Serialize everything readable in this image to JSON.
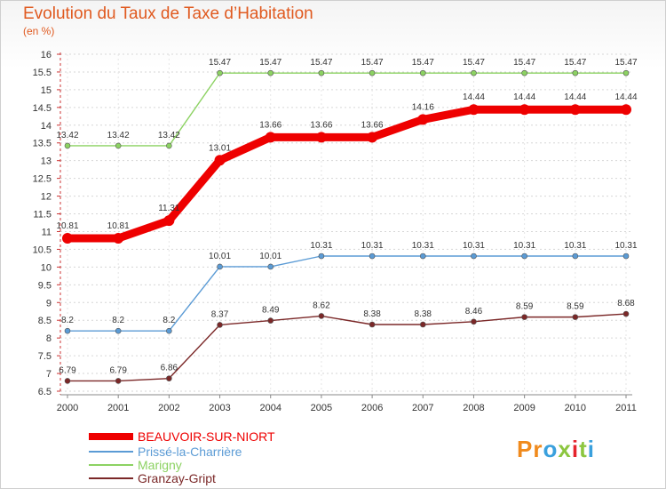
{
  "chart_data": {
    "type": "line",
    "title": "Evolution du Taux de Taxe d’Habitation",
    "unit_label": "(en %)",
    "x": [
      "2000",
      "2001",
      "2002",
      "2003",
      "2004",
      "2005",
      "2006",
      "2007",
      "2008",
      "2009",
      "2010",
      "2011"
    ],
    "ylim": [
      6.5,
      16
    ],
    "yticks": [
      "6.5",
      "7",
      "7.5",
      "8",
      "8.5",
      "9",
      "9.5",
      "10",
      "10.5",
      "11",
      "11.5",
      "12",
      "12.5",
      "13",
      "13.5",
      "14",
      "14.5",
      "15",
      "15.5",
      "16"
    ],
    "grid": "horizontal-dashed",
    "legend_position": "bottom-left",
    "series": [
      {
        "name": "BEAUVOIR-SUR-NIORT",
        "color": "#ee0000",
        "emphasis": true,
        "values": [
          10.81,
          10.81,
          11.31,
          13.01,
          13.66,
          13.66,
          13.66,
          14.16,
          14.44,
          14.44,
          14.44,
          14.44
        ],
        "labels": [
          "10.81",
          "10.81",
          "11.31",
          "13.01",
          "13.66",
          "13.66",
          "13.66",
          "14.16",
          "14.44",
          "14.44",
          "14.44",
          "14.44"
        ]
      },
      {
        "name": "Prissé-la-Charrière",
        "color": "#5b9bd5",
        "values": [
          8.2,
          8.2,
          8.2,
          10.01,
          10.01,
          10.31,
          10.31,
          10.31,
          10.31,
          10.31,
          10.31,
          10.31
        ],
        "labels": [
          "8.2",
          "8.2",
          "8.2",
          "10.01",
          "10.01",
          "10.31",
          "10.31",
          "10.31",
          "10.31",
          "10.31",
          "10.31",
          "10.31"
        ]
      },
      {
        "name": "Marigny",
        "color": "#8cd262",
        "values": [
          13.42,
          13.42,
          13.42,
          15.47,
          15.47,
          15.47,
          15.47,
          15.47,
          15.47,
          15.47,
          15.47,
          15.47
        ],
        "labels": [
          "13.42",
          "13.42",
          "13.42",
          "15.47",
          "15.47",
          "15.47",
          "15.47",
          "15.47",
          "15.47",
          "15.47",
          "15.47",
          "15.47"
        ]
      },
      {
        "name": "Granzay-Gript",
        "color": "#7b2828",
        "values": [
          6.79,
          6.79,
          6.86,
          8.37,
          8.49,
          8.62,
          8.38,
          8.38,
          8.46,
          8.59,
          8.59,
          8.68
        ],
        "labels": [
          "6.79",
          "6.79",
          "6.86",
          "8.37",
          "8.49",
          "8.62",
          "8.38",
          "8.38",
          "8.46",
          "8.59",
          "8.59",
          "8.68"
        ]
      }
    ]
  },
  "logo": {
    "text": "Proxiti",
    "letters": [
      "P",
      "r",
      "o",
      "x",
      "i",
      "t",
      "i"
    ],
    "colors": [
      "#f08a1c",
      "#f08a1c",
      "#3aa0dd",
      "#8cc63f",
      "#e5232c",
      "#8cc63f",
      "#3aa0dd"
    ]
  }
}
